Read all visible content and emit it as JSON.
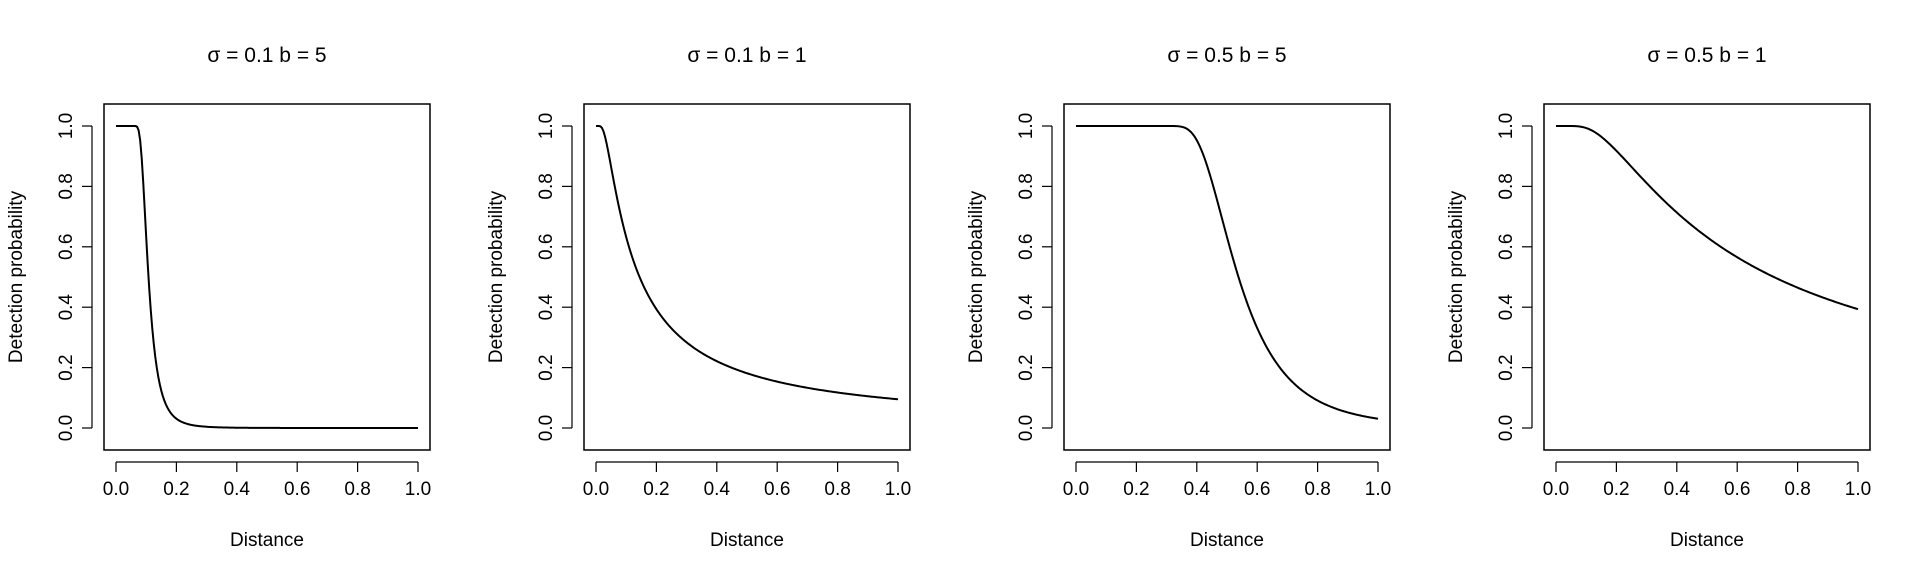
{
  "chart_data": [
    {
      "type": "line",
      "title": "σ = 0.1 b = 5",
      "sigma": 0.1,
      "b": 5,
      "xlabel": "Distance",
      "ylabel": "Detection probability",
      "xlim": [
        0,
        1
      ],
      "ylim": [
        0,
        1
      ],
      "xticks": [
        "0.0",
        "0.2",
        "0.4",
        "0.6",
        "0.8",
        "1.0"
      ],
      "yticks": [
        "0.0",
        "0.2",
        "0.4",
        "0.6",
        "0.8",
        "1.0"
      ],
      "x": [
        0.0,
        0.05,
        0.08,
        0.1,
        0.12,
        0.15,
        0.2,
        0.3,
        0.4,
        0.6,
        0.8,
        1.0
      ],
      "y": [
        1.0,
        1.0,
        0.97,
        0.63,
        0.33,
        0.12,
        0.03,
        0.004,
        0.001,
        0.0,
        0.0,
        0.0
      ],
      "grid": false,
      "color": "#000000"
    },
    {
      "type": "line",
      "title": "σ = 0.1 b = 1",
      "sigma": 0.1,
      "b": 1,
      "xlabel": "Distance",
      "ylabel": "Detection probability",
      "xlim": [
        0,
        1
      ],
      "ylim": [
        0,
        1
      ],
      "xticks": [
        "0.0",
        "0.2",
        "0.4",
        "0.6",
        "0.8",
        "1.0"
      ],
      "yticks": [
        "0.0",
        "0.2",
        "0.4",
        "0.6",
        "0.8",
        "1.0"
      ],
      "x": [
        0.0,
        0.02,
        0.05,
        0.1,
        0.15,
        0.2,
        0.3,
        0.4,
        0.5,
        0.6,
        0.8,
        1.0
      ],
      "y": [
        1.0,
        0.98,
        0.87,
        0.63,
        0.46,
        0.39,
        0.28,
        0.22,
        0.18,
        0.15,
        0.12,
        0.1
      ],
      "grid": false,
      "color": "#000000"
    },
    {
      "type": "line",
      "title": "σ = 0.5 b = 5",
      "sigma": 0.5,
      "b": 5,
      "xlabel": "Distance",
      "ylabel": "Detection probability",
      "xlim": [
        0,
        1
      ],
      "ylim": [
        0,
        1
      ],
      "xticks": [
        "0.0",
        "0.2",
        "0.4",
        "0.6",
        "0.8",
        "1.0"
      ],
      "yticks": [
        "0.0",
        "0.2",
        "0.4",
        "0.6",
        "0.8",
        "1.0"
      ],
      "x": [
        0.0,
        0.2,
        0.3,
        0.35,
        0.4,
        0.45,
        0.5,
        0.55,
        0.6,
        0.7,
        0.8,
        0.9,
        1.0
      ],
      "y": [
        1.0,
        1.0,
        1.0,
        0.99,
        0.95,
        0.78,
        0.63,
        0.45,
        0.32,
        0.17,
        0.09,
        0.05,
        0.03
      ],
      "grid": false,
      "color": "#000000"
    },
    {
      "type": "line",
      "title": "σ = 0.5 b = 1",
      "sigma": 0.5,
      "b": 1,
      "xlabel": "Distance",
      "ylabel": "Detection probability",
      "xlim": [
        0,
        1
      ],
      "ylim": [
        0,
        1
      ],
      "xticks": [
        "0.0",
        "0.2",
        "0.4",
        "0.6",
        "0.8",
        "1.0"
      ],
      "yticks": [
        "0.0",
        "0.2",
        "0.4",
        "0.6",
        "0.8",
        "1.0"
      ],
      "x": [
        0.0,
        0.05,
        0.1,
        0.15,
        0.2,
        0.3,
        0.4,
        0.5,
        0.6,
        0.7,
        0.8,
        0.9,
        1.0
      ],
      "y": [
        1.0,
        1.0,
        0.99,
        0.95,
        0.91,
        0.8,
        0.71,
        0.62,
        0.56,
        0.51,
        0.46,
        0.42,
        0.39
      ],
      "grid": false,
      "color": "#000000"
    }
  ]
}
